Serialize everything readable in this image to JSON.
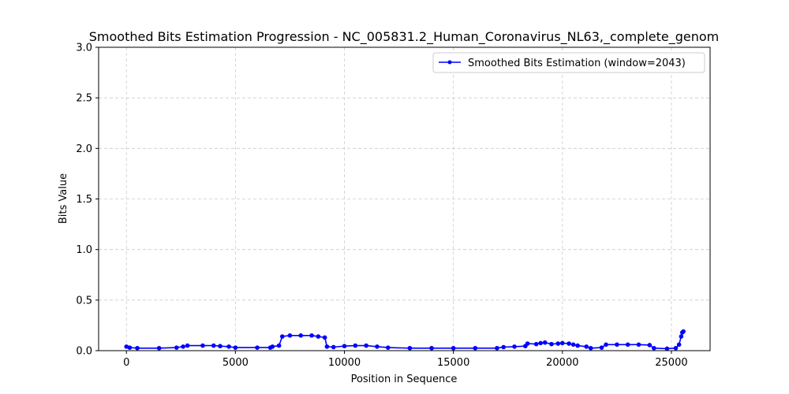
{
  "chart_data": {
    "type": "line",
    "title": "Smoothed Bits Estimation Progression - NC_005831.2_Human_Coronavirus_NL63,_complete_genom",
    "xlabel": "Position in Sequence",
    "ylabel": "Bits Value",
    "xlim": [
      -1275,
      26775
    ],
    "ylim": [
      0,
      3.0
    ],
    "xticks": [
      0,
      5000,
      10000,
      15000,
      20000,
      25000
    ],
    "xtick_labels": [
      "0",
      "5000",
      "10000",
      "15000",
      "20000",
      "25000"
    ],
    "yticks": [
      0.0,
      0.5,
      1.0,
      1.5,
      2.0,
      2.5,
      3.0
    ],
    "ytick_labels": [
      "0.0",
      "0.5",
      "1.0",
      "1.5",
      "2.0",
      "2.5",
      "3.0"
    ],
    "grid": true,
    "legend_position": "top-right",
    "series": [
      {
        "name": "Smoothed Bits Estimation (window=2043)",
        "color": "#0000ff",
        "marker": "circle",
        "points": [
          [
            0,
            0.04
          ],
          [
            150,
            0.03
          ],
          [
            500,
            0.025
          ],
          [
            1500,
            0.025
          ],
          [
            2300,
            0.03
          ],
          [
            2600,
            0.04
          ],
          [
            2800,
            0.05
          ],
          [
            3500,
            0.05
          ],
          [
            4000,
            0.05
          ],
          [
            4300,
            0.045
          ],
          [
            4700,
            0.04
          ],
          [
            5000,
            0.03
          ],
          [
            6000,
            0.03
          ],
          [
            6600,
            0.03
          ],
          [
            6700,
            0.04
          ],
          [
            7000,
            0.05
          ],
          [
            7150,
            0.14
          ],
          [
            7500,
            0.15
          ],
          [
            8000,
            0.15
          ],
          [
            8500,
            0.15
          ],
          [
            8800,
            0.14
          ],
          [
            9100,
            0.13
          ],
          [
            9200,
            0.04
          ],
          [
            9500,
            0.035
          ],
          [
            10000,
            0.045
          ],
          [
            10500,
            0.05
          ],
          [
            11000,
            0.05
          ],
          [
            11500,
            0.04
          ],
          [
            12000,
            0.03
          ],
          [
            13000,
            0.025
          ],
          [
            14000,
            0.025
          ],
          [
            15000,
            0.025
          ],
          [
            16000,
            0.025
          ],
          [
            17000,
            0.025
          ],
          [
            17300,
            0.035
          ],
          [
            17800,
            0.04
          ],
          [
            18300,
            0.045
          ],
          [
            18400,
            0.07
          ],
          [
            18800,
            0.065
          ],
          [
            19000,
            0.075
          ],
          [
            19200,
            0.08
          ],
          [
            19500,
            0.065
          ],
          [
            19800,
            0.07
          ],
          [
            20000,
            0.075
          ],
          [
            20300,
            0.07
          ],
          [
            20500,
            0.06
          ],
          [
            20700,
            0.05
          ],
          [
            21100,
            0.04
          ],
          [
            21300,
            0.025
          ],
          [
            21800,
            0.03
          ],
          [
            22000,
            0.06
          ],
          [
            22500,
            0.06
          ],
          [
            23000,
            0.06
          ],
          [
            23500,
            0.06
          ],
          [
            24000,
            0.055
          ],
          [
            24200,
            0.025
          ],
          [
            24800,
            0.02
          ],
          [
            25200,
            0.025
          ],
          [
            25350,
            0.06
          ],
          [
            25450,
            0.14
          ],
          [
            25500,
            0.18
          ],
          [
            25550,
            0.19
          ]
        ]
      }
    ]
  }
}
